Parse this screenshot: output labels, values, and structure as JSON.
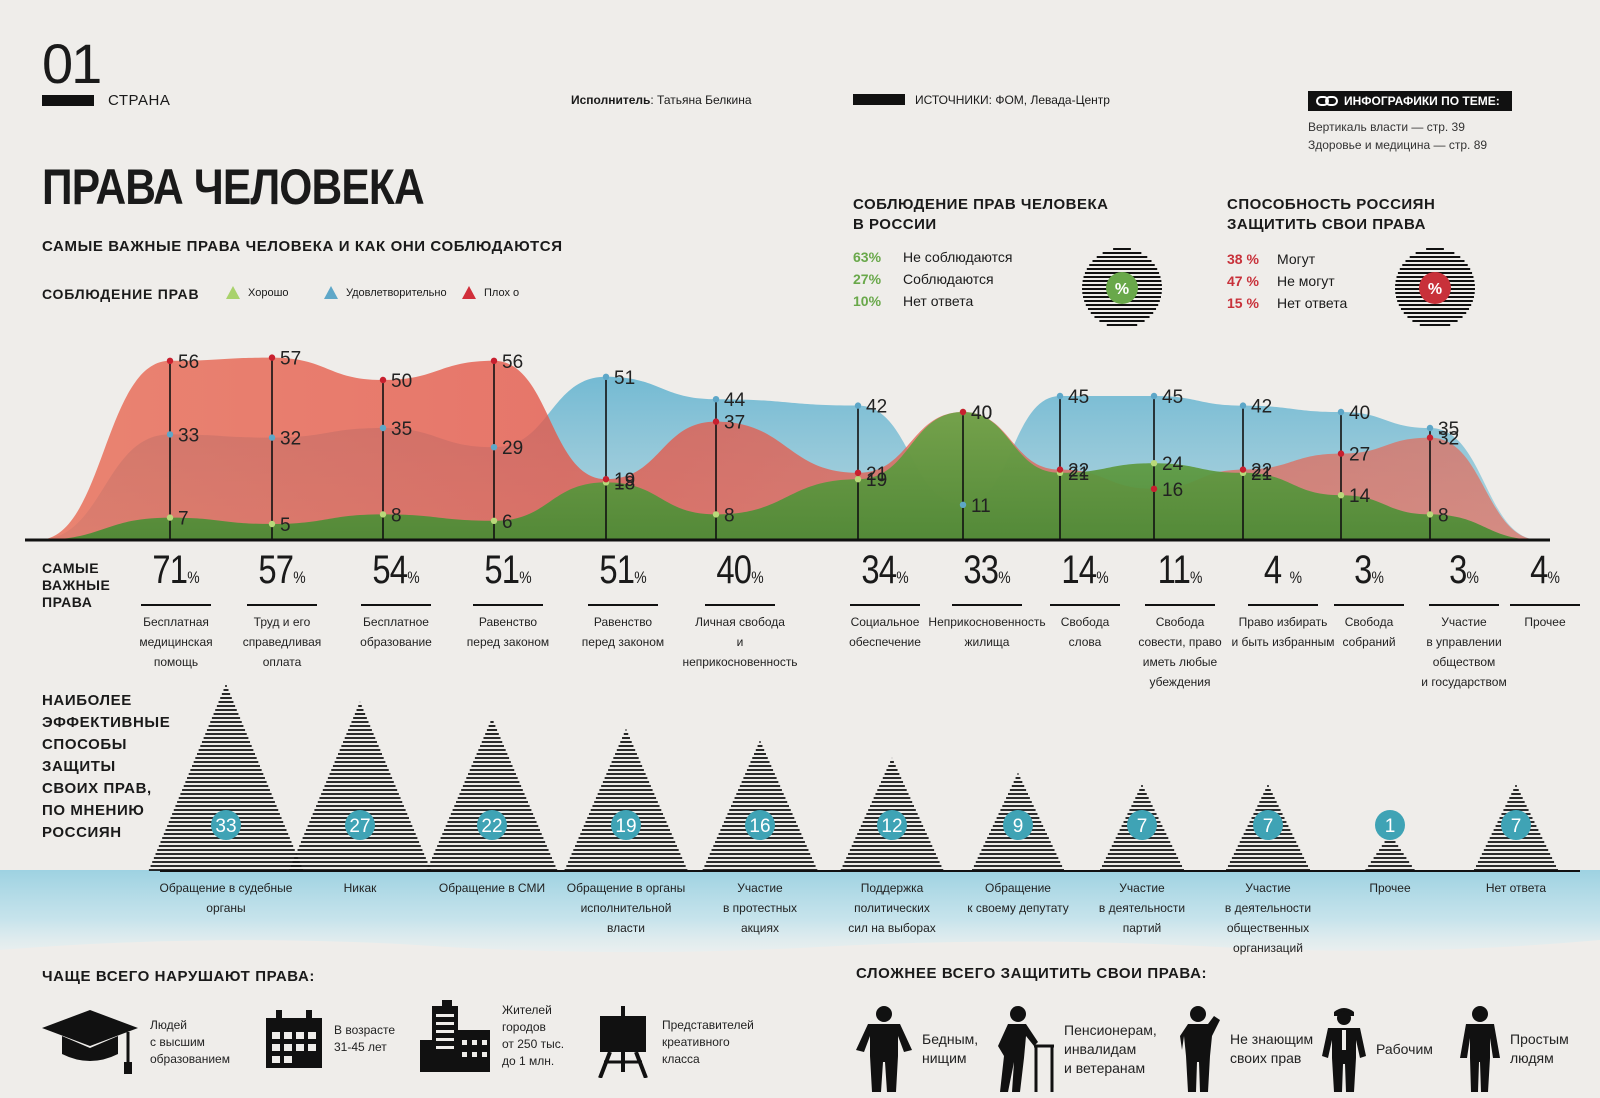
{
  "header": {
    "number": "01",
    "section": "СТРАНА",
    "author_label": "Исполнитель",
    "author_name": ": Татьяна Белкина",
    "sources": "ИСТОЧНИКИ: ФОМ, Левада-Центр",
    "related_title": "ИНФОГРАФИКИ ПО ТЕМЕ:",
    "related_items": [
      "Вертикаль власти — стр. 39",
      "Здоровье и медицина — стр. 89"
    ]
  },
  "title": "ПРАВА ЧЕЛОВЕКА",
  "subtitle": "САМЫЕ ВАЖНЫЕ ПРАВА ЧЕЛОВЕКА И КАК ОНИ СОБЛЮДАЮТСЯ",
  "legend": {
    "title": "СОБЛЮДЕНИЕ ПРАВ",
    "items": [
      {
        "label": "Хорошо",
        "color": "#a9d26c"
      },
      {
        "label": "Удовлетворительно",
        "color": "#5ea7c8"
      },
      {
        "label": "Плох о",
        "color": "#d12f3a"
      }
    ]
  },
  "observance": {
    "title_lines": [
      "СОБЛЮДЕНИЕ ПРАВ ЧЕЛОВЕКА",
      "В РОССИИ"
    ],
    "rows": [
      {
        "pct": "63%",
        "label": "Не соблюдаются"
      },
      {
        "pct": "27%",
        "label": "Соблюдаются"
      },
      {
        "pct": "10%",
        "label": "Нет ответа"
      }
    ],
    "color": "#69a84a",
    "badge": "%"
  },
  "ability": {
    "title_lines": [
      "СПОСОБНОСТЬ РОССИЯН",
      "ЗАЩИТИТЬ СВОИ ПРАВА"
    ],
    "rows": [
      {
        "pct": "38 %",
        "label": "Могут"
      },
      {
        "pct": "47 %",
        "label": "Не могут"
      },
      {
        "pct": "15 %",
        "label": "Нет ответа"
      }
    ],
    "color": "#c8313a",
    "badge": "%"
  },
  "chart_data": [
    {
      "type": "area",
      "categories": [
        "Бесплатная медицинская помощь",
        "Труд и его справедливая оплата",
        "Бесплатное образование",
        "Равенство перед законом",
        "Равенство перед законом",
        "Личная свобода и неприкосновенность",
        "Социальное обеспечение",
        "Неприкосновенность жилища",
        "Свобода слова",
        "Свобода совести, право иметь любые убеждения",
        "Право избирать и быть избранным",
        "Свобода собраний",
        "Участие в управлении обществом и государством"
      ],
      "series": [
        {
          "name": "Хорошо",
          "color": "#a9d26c",
          "values": [
            7,
            5,
            8,
            6,
            18,
            8,
            19,
            40,
            21,
            24,
            21,
            14,
            8
          ]
        },
        {
          "name": "Удовлетворительно",
          "color": "#5ea7c8",
          "values": [
            33,
            32,
            35,
            29,
            51,
            44,
            42,
            11,
            45,
            45,
            42,
            40,
            35
          ]
        },
        {
          "name": "Плох о",
          "color": "#d12f3a",
          "values": [
            56,
            57,
            50,
            56,
            19,
            37,
            21,
            40,
            22,
            16,
            22,
            27,
            32
          ]
        }
      ],
      "ylim": [
        0,
        65
      ]
    },
    {
      "type": "bar",
      "title": "САМЫЕ ВАЖНЫЕ ПРАВА",
      "categories": [
        "Бесплатная медицинская помощь",
        "Труд и его справедливая оплата",
        "Бесплатное образование",
        "Равенство перед законом",
        "Равенство перед законом",
        "Личная свобода и неприкосновенность",
        "Социальное обеспечение",
        "Неприкосновенность жилища",
        "Свобода слова",
        "Свобода совести, право иметь любые убеждения",
        "Право избирать и быть избранным",
        "Свобода собраний",
        "Участие в управлении обществом и государством",
        "Прочее"
      ],
      "values": [
        71,
        57,
        54,
        51,
        51,
        40,
        34,
        33,
        14,
        11,
        4,
        3,
        3,
        4
      ],
      "unit": "%"
    },
    {
      "type": "bar",
      "title": "НАИБОЛЕЕ ЭФФЕКТИВНЫЕ СПОСОБЫ ЗАЩИТЫ СВОИХ ПРАВ, ПО МНЕНИЮ РОССИЯН",
      "categories": [
        "Обращение в судебные органы",
        "Никак",
        "Обращение в СМИ",
        "Обращение в органы исполнительной власти",
        "Участие в протестных акциях",
        "Поддержка политических сил на выборах",
        "Обращение к своему депутату",
        "Участие в деятельности партий",
        "Участие в деятельности общественных организаций",
        "Прочее",
        "Нет ответа"
      ],
      "values": [
        33,
        27,
        22,
        19,
        16,
        12,
        9,
        7,
        7,
        1,
        7
      ]
    }
  ],
  "important": {
    "label_lines": [
      "САМЫЕ",
      "ВАЖНЫЕ",
      "ПРАВА"
    ],
    "items": [
      {
        "value": "71",
        "name_lines": [
          "Бесплатная",
          "медицинская",
          "помощь"
        ]
      },
      {
        "value": "57",
        "name_lines": [
          "Труд и его",
          "справедливая",
          "оплата"
        ]
      },
      {
        "value": "54",
        "name_lines": [
          "Бесплатное",
          "образование"
        ]
      },
      {
        "value": "51",
        "name_lines": [
          "Равенство",
          "перед законом"
        ]
      },
      {
        "value": "51",
        "name_lines": [
          "Равенство",
          "перед законом"
        ]
      },
      {
        "value": "40",
        "name_lines": [
          "Личная свобода",
          "и неприкосновенность"
        ]
      },
      {
        "value": "34",
        "name_lines": [
          "Социальное",
          "обеспечение"
        ]
      },
      {
        "value": "33",
        "name_lines": [
          "Неприкосновенность",
          "жилища"
        ]
      },
      {
        "value": "14",
        "name_lines": [
          "Свобода",
          "слова"
        ]
      },
      {
        "value": "11",
        "name_lines": [
          "Свобода",
          "совести, право",
          "иметь любые",
          "убеждения"
        ]
      },
      {
        "value": "4 ",
        "name_lines": [
          "Право избирать",
          "и быть избранным"
        ]
      },
      {
        "value": "3",
        "name_lines": [
          "Свобода",
          "собраний"
        ]
      },
      {
        "value": "3",
        "name_lines": [
          "Участие",
          "в управлении",
          "обществом",
          "и государством"
        ]
      },
      {
        "value": "4",
        "name_lines": [
          "Прочее"
        ]
      }
    ],
    "percent_sign": "%"
  },
  "effective": {
    "label_lines": [
      "НАИБОЛЕЕ",
      "ЭФФЕКТИВНЫЕ",
      "СПОСОБЫ",
      "ЗАЩИТЫ",
      "СВОИХ ПРАВ,",
      "ПО МНЕНИЮ",
      "РОССИЯН"
    ],
    "items": [
      {
        "value": "33",
        "name_lines": [
          "Обращение в судебные",
          "органы"
        ]
      },
      {
        "value": "27",
        "name_lines": [
          "Никак"
        ]
      },
      {
        "value": "22",
        "name_lines": [
          "Обращение в СМИ"
        ]
      },
      {
        "value": "19",
        "name_lines": [
          "Обращение в органы",
          "исполнительной",
          "власти"
        ]
      },
      {
        "value": "16",
        "name_lines": [
          "Участие",
          "в протестных",
          "акциях"
        ]
      },
      {
        "value": "12",
        "name_lines": [
          "Поддержка",
          "политических",
          "сил на выборах"
        ]
      },
      {
        "value": "9",
        "name_lines": [
          "Обращение",
          "к своему депутату"
        ]
      },
      {
        "value": "7",
        "name_lines": [
          "Участие",
          "в деятельности",
          "партий"
        ]
      },
      {
        "value": "7",
        "name_lines": [
          "Участие",
          "в деятельности",
          "общественных",
          "организаций"
        ]
      },
      {
        "value": "1",
        "name_lines": [
          "Прочее"
        ]
      },
      {
        "value": "7",
        "name_lines": [
          "Нет ответа"
        ]
      }
    ],
    "circle_color": "#3fa3b5"
  },
  "violated": {
    "title": "ЧАЩЕ ВСЕГО НАРУШАЮТ ПРАВА:",
    "items": [
      {
        "icon": "graduation-cap-icon",
        "lines": [
          "Людей",
          "с высшим",
          "образованием"
        ]
      },
      {
        "icon": "calendar-icon",
        "lines": [
          "В возрасте",
          "31-45 лет"
        ]
      },
      {
        "icon": "city-buildings-icon",
        "lines": [
          "Жителей",
          "городов",
          "от 250 тыс.",
          "до 1 млн."
        ]
      },
      {
        "icon": "easel-icon",
        "lines": [
          "Представителей",
          "креативного",
          "класса"
        ]
      }
    ]
  },
  "hardest": {
    "title": "СЛОЖНЕЕ ВСЕГО ЗАЩИТИТЬ СВОИ ПРАВА:",
    "items": [
      {
        "icon": "poor-person-icon",
        "lines": [
          "Бедным,",
          "нищим"
        ]
      },
      {
        "icon": "elderly-person-icon",
        "lines": [
          "Пенсионерам,",
          "инвалидам",
          "и ветеранам"
        ]
      },
      {
        "icon": "confused-person-icon",
        "lines": [
          "Не знающим",
          "своих прав"
        ]
      },
      {
        "icon": "worker-icon",
        "lines": [
          "Рабочим"
        ]
      },
      {
        "icon": "simple-person-icon",
        "lines": [
          "Простым",
          "людям"
        ]
      }
    ]
  }
}
